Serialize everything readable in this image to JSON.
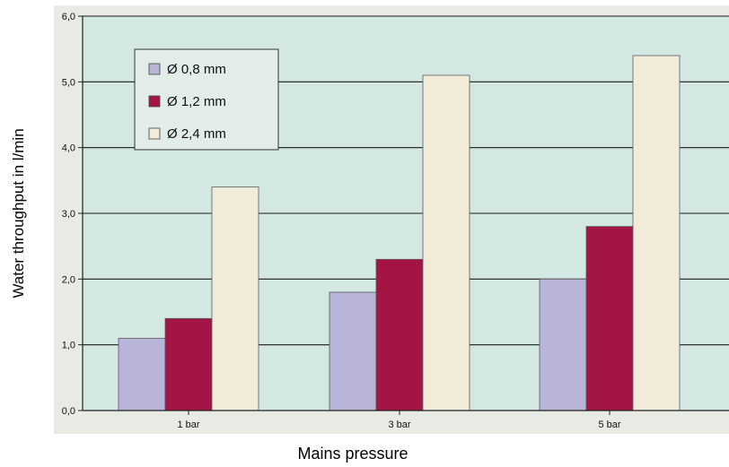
{
  "chart_data": {
    "type": "bar",
    "title": "",
    "xlabel": "Mains pressure",
    "ylabel": "Water throughput in l/min",
    "categories": [
      "1 bar",
      "3 bar",
      "5 bar"
    ],
    "series": [
      {
        "name": "Ø 0,8 mm",
        "values": [
          1.1,
          1.8,
          2.0
        ]
      },
      {
        "name": "Ø 1,2 mm",
        "values": [
          1.4,
          2.3,
          2.8
        ]
      },
      {
        "name": "Ø 2,4 mm",
        "values": [
          3.4,
          5.1,
          5.4
        ]
      }
    ],
    "ylim": [
      0,
      6
    ],
    "yticks": [
      0,
      1,
      2,
      3,
      4,
      5,
      6
    ],
    "ytick_labels": [
      "0,0",
      "1,0",
      "2,0",
      "3,0",
      "4,0",
      "5,0",
      "6,0"
    ],
    "grid": "horizontal",
    "legend_position": "top-left",
    "colors": {
      "plot_background": "#d4e8e3",
      "outer_background": "#e8ebe4",
      "gridline": "#1a1a1a",
      "series": [
        "#b9b5d8",
        "#a31545",
        "#f1ecd9"
      ],
      "bar_edge": "#5a5a5a"
    }
  }
}
